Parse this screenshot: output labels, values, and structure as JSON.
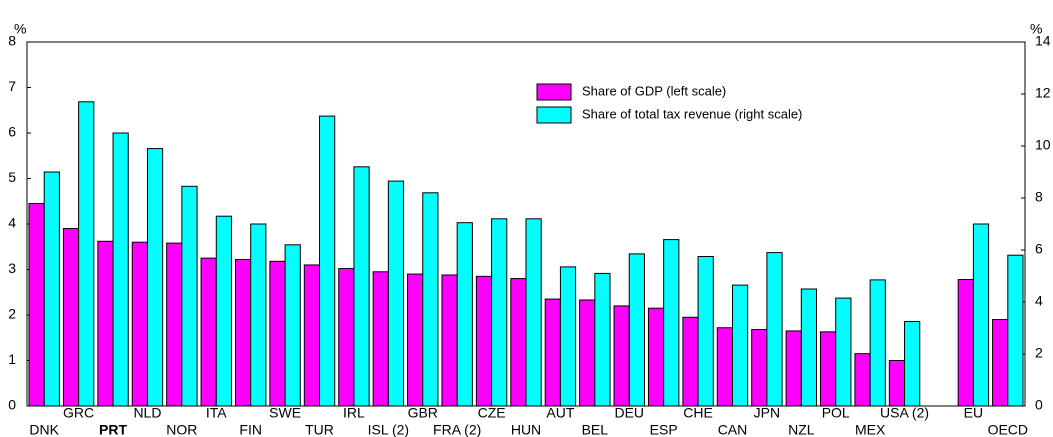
{
  "chart_data": {
    "type": "bar",
    "y_unit_label": "%",
    "y2_unit_label": "%",
    "categories": [
      "DNK",
      "GRC",
      "PRT",
      "NLD",
      "NOR",
      "ITA",
      "FIN",
      "SWE",
      "TUR",
      "IRL",
      "ISL (2)",
      "GBR",
      "FRA (2)",
      "CZE",
      "HUN",
      "AUT",
      "BEL",
      "DEU",
      "ESP",
      "CHE",
      "CAN",
      "JPN",
      "NZL",
      "POL",
      "MEX",
      "USA (2)",
      null,
      "EU",
      "OECD"
    ],
    "highlight": "PRT",
    "series": [
      {
        "name": "Share of GDP (left scale)",
        "color": "#ff00ff",
        "values": [
          4.45,
          3.9,
          3.62,
          3.6,
          3.58,
          3.25,
          3.22,
          3.18,
          3.1,
          3.02,
          2.95,
          2.9,
          2.88,
          2.85,
          2.8,
          2.35,
          2.33,
          2.2,
          2.15,
          1.95,
          1.72,
          1.68,
          1.65,
          1.63,
          1.15,
          1.0,
          null,
          2.78,
          1.9
        ]
      },
      {
        "name": "Share of total tax revenue (right scale)",
        "color": "#00ffff",
        "axis": "y2",
        "values": [
          9.0,
          11.7,
          10.5,
          9.9,
          8.45,
          7.3,
          7.0,
          6.2,
          11.15,
          9.2,
          8.65,
          8.2,
          7.05,
          7.2,
          7.2,
          5.35,
          5.1,
          5.85,
          6.4,
          5.75,
          4.65,
          5.9,
          4.5,
          4.15,
          4.85,
          3.25,
          null,
          7.0,
          5.8
        ]
      }
    ],
    "ylim": [
      0,
      8
    ],
    "yticks": [
      0,
      1,
      2,
      3,
      4,
      5,
      6,
      7,
      8
    ],
    "y2lim": [
      0,
      14
    ],
    "y2ticks": [
      0,
      2,
      4,
      6,
      8,
      10,
      12,
      14
    ],
    "legend": "top-right"
  }
}
